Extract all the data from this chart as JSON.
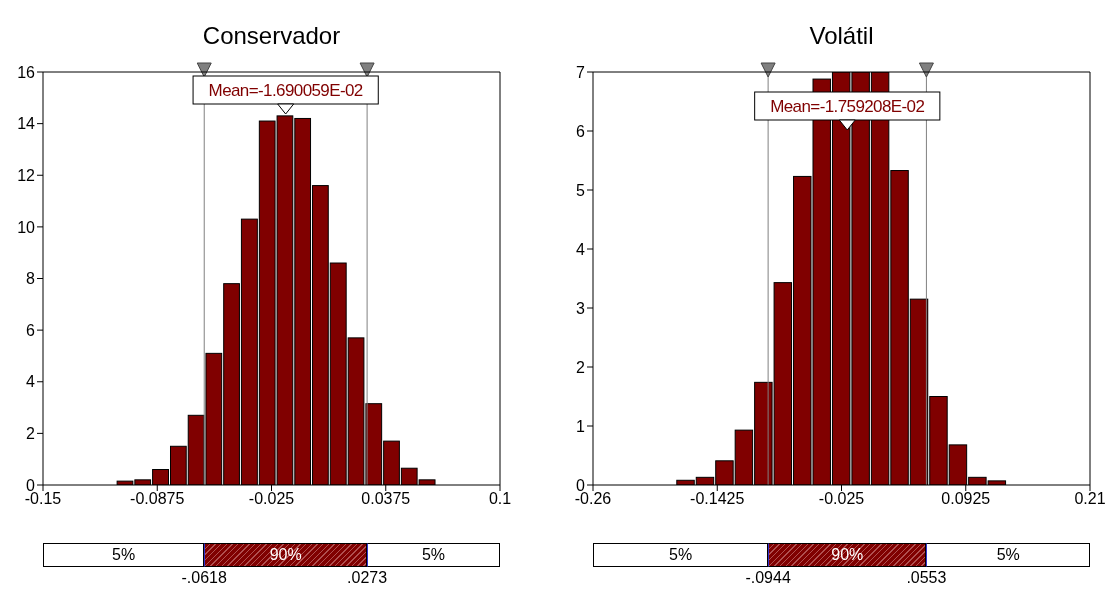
{
  "chart_data": [
    {
      "type": "histogram",
      "title": "Conservador",
      "color": "#800000",
      "bins": [
        -0.11,
        -0.1003,
        -0.0906,
        -0.0808,
        -0.0711,
        -0.0614,
        -0.0517,
        -0.042,
        -0.0322,
        -0.0225,
        -0.0128,
        -0.0031,
        0.0066,
        0.0164,
        0.0261,
        0.0358,
        0.0455,
        0.0552,
        0.065
      ],
      "values": [
        0.15,
        0.2,
        0.6,
        1.5,
        2.7,
        5.1,
        7.8,
        10.3,
        14.1,
        14.3,
        14.2,
        11.6,
        8.6,
        5.7,
        3.15,
        1.7,
        0.65,
        0.2
      ],
      "xlim": [
        -0.15,
        0.1
      ],
      "xticks": [
        -0.15,
        -0.0875,
        -0.025,
        0.0375,
        0.1
      ],
      "ylim": [
        0,
        16
      ],
      "yticks": [
        0,
        2,
        4,
        6,
        8,
        10,
        12,
        14,
        16
      ],
      "ref_lines": [
        {
          "axis": "x",
          "value": -0.0618,
          "color": "#808080"
        },
        {
          "axis": "x",
          "value": 0.0273,
          "color": "#808080"
        }
      ],
      "annotations": [
        "Mean=-1.690059E-02",
        "5%",
        "90%",
        "5%",
        "-.0618",
        ".0273"
      ]
    },
    {
      "type": "histogram",
      "title": "Volátil",
      "color": "#800000",
      "bins": [
        -0.1817,
        -0.1633,
        -0.1449,
        -0.1265,
        -0.1081,
        -0.0897,
        -0.0713,
        -0.0529,
        -0.0345,
        -0.0161,
        0.0023,
        0.0207,
        0.0391,
        0.0575,
        0.0759,
        0.0943,
        0.1127,
        0.1311
      ],
      "values": [
        0.08,
        0.13,
        0.41,
        0.93,
        1.74,
        3.43,
        5.23,
        6.88,
        7,
        7,
        7,
        5.33,
        3.15,
        1.5,
        0.68,
        0.13,
        0.07
      ],
      "xlim": [
        -0.26,
        0.21
      ],
      "xticks": [
        -0.26,
        -0.1425,
        -0.025,
        0.0925,
        0.21
      ],
      "ylim": [
        0,
        7
      ],
      "yticks": [
        0,
        1,
        2,
        3,
        4,
        5,
        6,
        7
      ],
      "ref_lines": [
        {
          "axis": "x",
          "value": -0.0944,
          "color": "#808080"
        },
        {
          "axis": "x",
          "value": 0.0553,
          "color": "#808080"
        }
      ],
      "annotations": [
        "Mean=-1.759208E-02",
        "5%",
        "90%",
        "5%",
        "-.0944",
        ".0553"
      ]
    }
  ]
}
